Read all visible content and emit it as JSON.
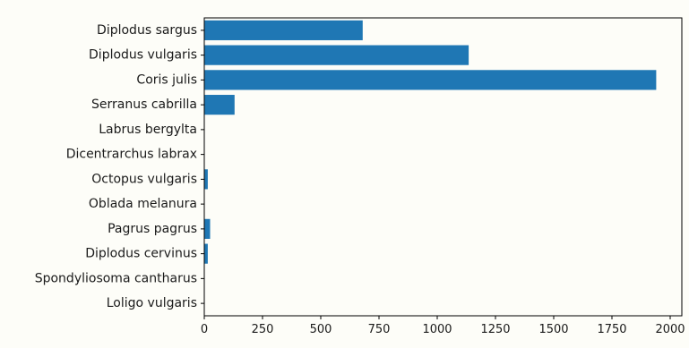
{
  "chart_data": {
    "type": "bar",
    "orientation": "horizontal",
    "categories": [
      "Diplodus sargus",
      "Diplodus vulgaris",
      "Coris julis",
      "Serranus cabrilla",
      "Labrus bergylta",
      "Dicentrarchus labrax",
      "Octopus vulgaris",
      "Oblada melanura",
      "Pagrus pagrus",
      "Diplodus cervinus",
      "Spondyliosoma cantharus",
      "Loligo vulgaris"
    ],
    "values": [
      680,
      1135,
      1940,
      130,
      0,
      0,
      15,
      0,
      25,
      15,
      0,
      0
    ],
    "xlim": [
      0,
      2050
    ],
    "xticks": [
      0,
      250,
      500,
      750,
      1000,
      1250,
      1500,
      1750,
      2000
    ],
    "title": "",
    "xlabel": "",
    "ylabel": "",
    "grid": false,
    "bar_color": "#1f77b4"
  }
}
